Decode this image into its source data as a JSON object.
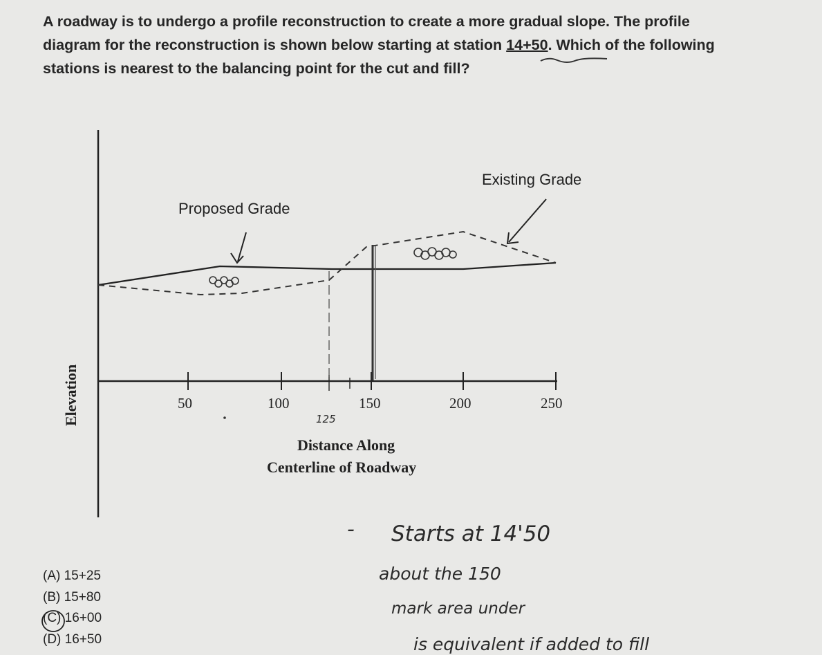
{
  "question": {
    "line1": "A roadway is to undergo a profile reconstruction to create a more gradual slope. The profile",
    "line2_prefix": "diagram for the reconstruction is shown below starting at station ",
    "line2_station": "14+50",
    "line2_suffix": ". Which of the following",
    "line3": "stations is nearest to the balancing point for the cut and fill?"
  },
  "diagram": {
    "label_existing": "Existing Grade",
    "label_proposed": "Proposed Grade",
    "y_axis_label": "Elevation",
    "x_axis_title_line1": "Distance Along",
    "x_axis_title_line2": "Centerline of Roadway",
    "ticks": [
      "50",
      "100",
      "150",
      "200",
      "250"
    ],
    "annotation_125": "125"
  },
  "choices": [
    "(A) 15+25",
    "(B) 15+80",
    "(C) 16+00",
    "(D) 16+50"
  ],
  "selected_choice": "(C) 16+00",
  "handwritten_notes": {
    "dash": "-",
    "line1": "Starts at 14'50",
    "line2": "about the 150",
    "line3": "mark area under",
    "line4": "is equivalent if added to fill"
  }
}
